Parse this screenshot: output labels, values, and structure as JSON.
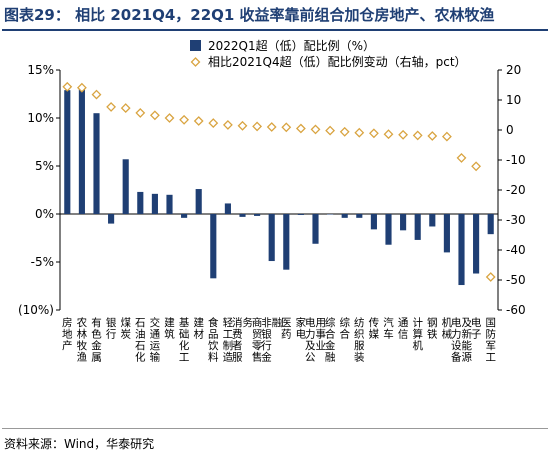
{
  "figure_title": "图表29：  相比 2021Q4，22Q1 收益率靠前组合加仓房地产、农林牧渔",
  "source_note": "资料来源：Wind，华泰研究",
  "chart_data": {
    "type": "bar",
    "categories": [
      "房地产",
      "农林牧渔",
      "有色金属",
      "银行",
      "煤炭",
      "石油石化",
      "交通运输",
      "建筑",
      "基础化工",
      "建材",
      "食品饮料",
      "轻工制造",
      "消费者服务",
      "商贸零售",
      "非银行金融",
      "医药",
      "家电",
      "电力及公用事业",
      "综合金融",
      "综合",
      "纺织服装",
      "传媒",
      "汽车",
      "通信",
      "计算机",
      "钢铁",
      "机械",
      "电力设备及新能源",
      "电子",
      "国防军工"
    ],
    "series": [
      {
        "name": "2022Q1超（低）配比例（%）",
        "type": "bar",
        "axis": "left",
        "color": "#1f3f74",
        "values": [
          12.9,
          13.0,
          10.5,
          -1.0,
          5.7,
          2.3,
          2.1,
          2.0,
          -0.4,
          2.6,
          -6.7,
          1.1,
          -0.3,
          -0.2,
          -4.9,
          -5.8,
          -0.1,
          -3.1,
          0.0,
          -0.4,
          -0.4,
          -1.6,
          -3.2,
          -1.7,
          -2.7,
          -1.3,
          -4.0,
          -7.4,
          -6.2,
          -2.1
        ]
      },
      {
        "name": "相比2021Q4超（低）配比例变动（右轴，pct）",
        "type": "scatter",
        "axis": "right",
        "color": "#d9a441",
        "values": [
          14.4,
          14.1,
          11.8,
          7.7,
          7.3,
          5.7,
          4.9,
          4.0,
          3.4,
          3.0,
          2.3,
          1.7,
          1.4,
          1.2,
          1.0,
          0.9,
          0.5,
          0.2,
          -0.2,
          -0.6,
          -0.9,
          -1.1,
          -1.4,
          -1.6,
          -1.8,
          -2.0,
          -2.2,
          -9.3,
          -12.1,
          -49.0
        ]
      }
    ],
    "left_axis": {
      "ylim": [
        -10,
        15
      ],
      "ticks": [
        -10,
        -5,
        0,
        5,
        10,
        15
      ],
      "tick_labels": [
        "(10%)",
        "-5%",
        "0%",
        "5%",
        "10%",
        "15%"
      ]
    },
    "right_axis": {
      "ylim": [
        -60,
        20
      ],
      "ticks": [
        -60,
        -50,
        -40,
        -30,
        -20,
        -10,
        0,
        10,
        20
      ],
      "tick_labels": [
        "-60",
        "-50",
        "-40",
        "-30",
        "-20",
        "-10",
        "0",
        "10",
        "20"
      ]
    },
    "legend_position": "top-center",
    "grid": false
  }
}
